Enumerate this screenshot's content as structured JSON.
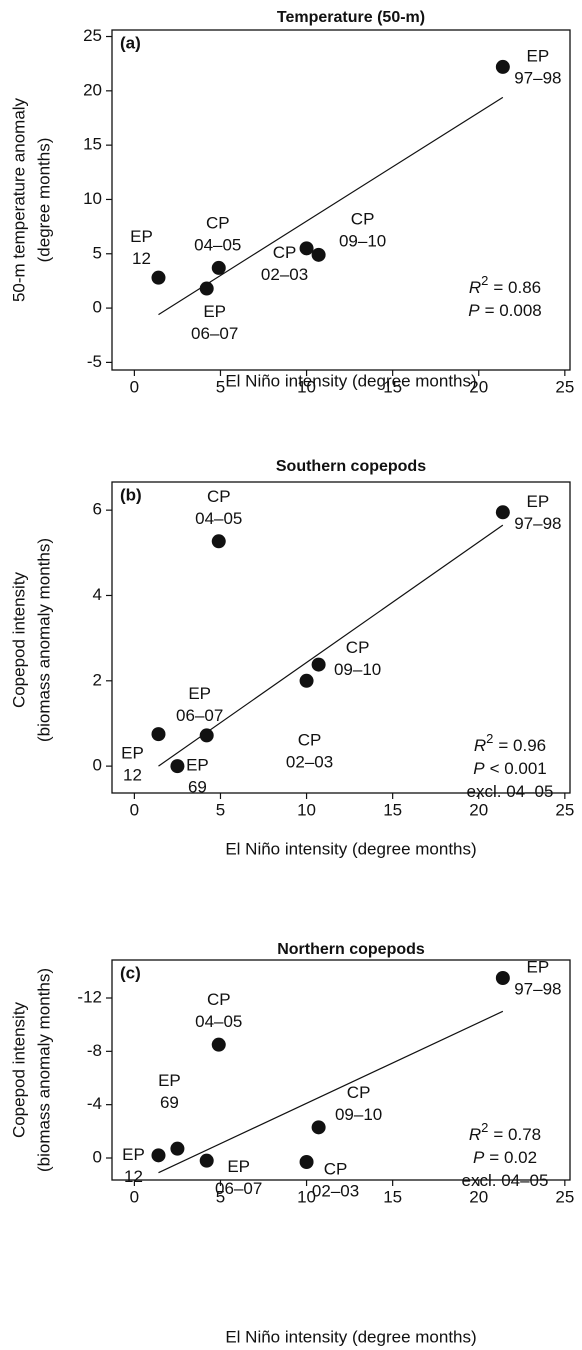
{
  "chart_data": [
    {
      "type": "scatter",
      "title": "Temperature (50-m)",
      "panel_label": "(a)",
      "xlabel": "El Niño intensity (degree months)",
      "ylabel": [
        "50-m temperature anomaly",
        "(degree months)"
      ],
      "x": [
        1.4,
        4.2,
        4.9,
        10.0,
        10.7,
        21.4
      ],
      "values": [
        2.8,
        1.8,
        3.7,
        5.5,
        4.9,
        22.2
      ],
      "color": "#111111",
      "point_labels": [
        [
          "EP",
          "12"
        ],
        [
          "EP",
          "06–07"
        ],
        [
          "CP",
          "04–05"
        ],
        [
          "CP",
          "02–03"
        ],
        [
          "CP",
          "09–10"
        ],
        [
          "EP",
          "97–98"
        ]
      ],
      "fit_line": {
        "x": [
          1.4,
          21.4
        ],
        "y": [
          -0.6,
          19.4
        ]
      },
      "stats": [
        {
          "symbol": "R",
          "superscript": "2",
          "text": "= 0.86"
        },
        {
          "symbol": "P",
          "text": "= 0.008"
        }
      ],
      "xlim": [
        -1.3,
        25.3
      ],
      "xticks": [
        0,
        5,
        10,
        15,
        20,
        25
      ],
      "ylim": [
        -5.7,
        25.6
      ],
      "yticks": [
        -5,
        0,
        5,
        10,
        15,
        20,
        25
      ]
    },
    {
      "type": "scatter",
      "title": "Southern copepods",
      "panel_label": "(b)",
      "xlabel": "El Niño intensity (degree months)",
      "ylabel": [
        "Copepod intensity",
        "(biomass anomaly months)"
      ],
      "x": [
        1.4,
        2.5,
        4.2,
        4.9,
        10.0,
        10.7,
        21.4
      ],
      "values": [
        0.75,
        0.0,
        0.72,
        5.27,
        2.0,
        2.38,
        5.95
      ],
      "color": "#111111",
      "point_labels": [
        [
          "EP",
          "12"
        ],
        [
          "EP",
          "69"
        ],
        [
          "EP",
          "06–07"
        ],
        [
          "CP",
          "04–05"
        ],
        [
          "CP",
          "02–03"
        ],
        [
          "CP",
          "09–10"
        ],
        [
          "EP",
          "97–98"
        ]
      ],
      "fit_line": {
        "x": [
          1.4,
          21.4
        ],
        "y": [
          0.0,
          5.65
        ]
      },
      "stats": [
        {
          "symbol": "R",
          "superscript": "2",
          "text": "= 0.96"
        },
        {
          "symbol": "P",
          "text": "< 0.001"
        },
        {
          "text": "excl. 04–05"
        }
      ],
      "xlim": [
        -1.3,
        25.3
      ],
      "xticks": [
        0,
        5,
        10,
        15,
        20,
        25
      ],
      "ylim": [
        -0.63,
        6.66
      ],
      "yticks": [
        0,
        2,
        4,
        6
      ]
    },
    {
      "type": "scatter",
      "title": "Northern copepods",
      "panel_label": "(c)",
      "xlabel": "El Niño intensity (degree months)",
      "ylabel": [
        "Copepod intensity",
        "(biomass anomaly months)"
      ],
      "x": [
        1.4,
        2.5,
        4.2,
        4.9,
        10.0,
        10.7,
        21.4
      ],
      "values": [
        -0.2,
        -0.7,
        0.2,
        -8.5,
        0.3,
        -2.3,
        -13.5
      ],
      "color": "#111111",
      "point_labels": [
        [
          "EP",
          "12"
        ],
        [
          "EP",
          "69"
        ],
        [
          "EP",
          "06–07"
        ],
        [
          "CP",
          "04–05"
        ],
        [
          "CP",
          "02–03"
        ],
        [
          "CP",
          "09–10"
        ],
        [
          "EP",
          "97–98"
        ]
      ],
      "fit_line": {
        "x": [
          1.4,
          21.4
        ],
        "y": [
          1.1,
          -11.0
        ]
      },
      "stats": [
        {
          "symbol": "R",
          "superscript": "2",
          "text": "= 0.78"
        },
        {
          "symbol": "P",
          "text": "= 0.02"
        },
        {
          "text": "excl. 04–05"
        }
      ],
      "xlim": [
        -1.3,
        25.3
      ],
      "xticks": [
        0,
        5,
        10,
        15,
        20,
        25
      ],
      "ylim": [
        1.65,
        -14.85
      ],
      "yticks": [
        -12,
        -8,
        -4,
        0
      ]
    }
  ]
}
